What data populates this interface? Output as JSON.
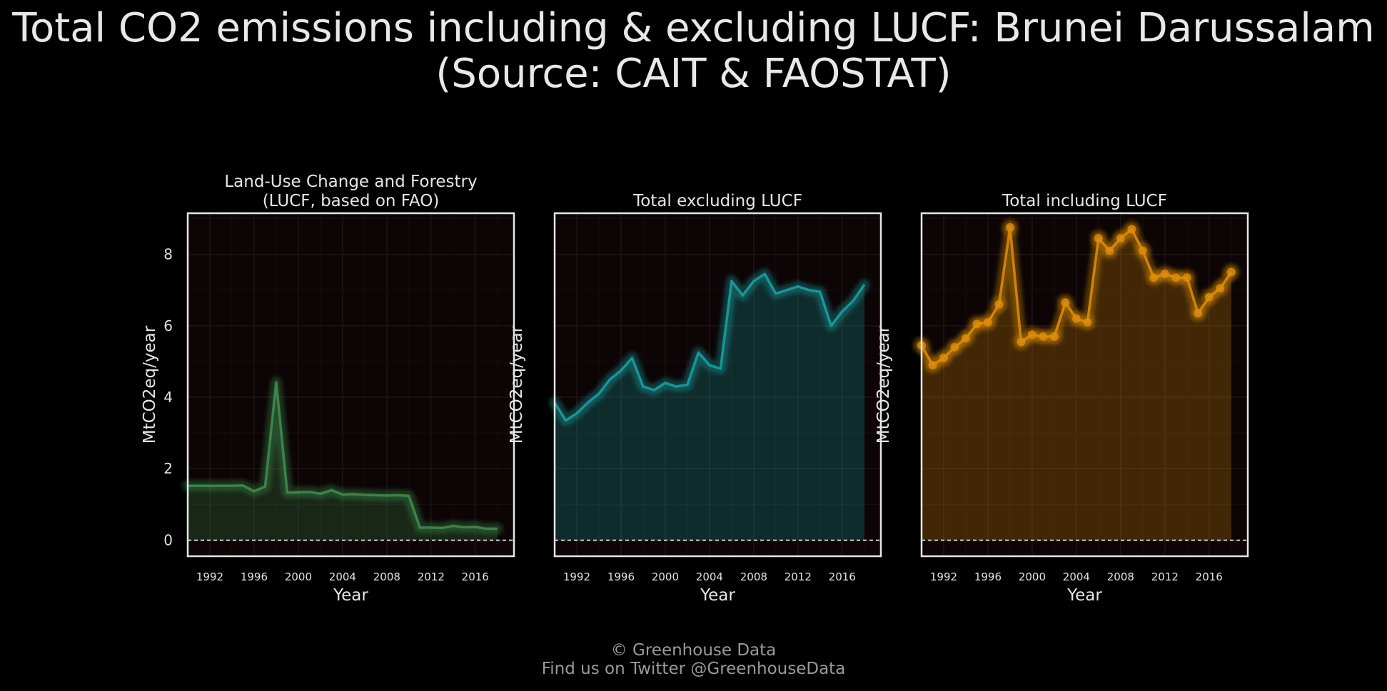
{
  "header": {
    "title_line1": "Total CO2 emissions including & excluding LUCF: Brunei Darussalam",
    "title_line2": "(Source: CAIT & FAOSTAT)"
  },
  "footer": {
    "line1": "© Greenhouse Data",
    "line2": "Find us on Twitter @GreenhouseData"
  },
  "chart_data": [
    {
      "type": "area",
      "title": "Land-Use Change and Forestry\n(LUCF, based on FAO)",
      "xlabel": "Year",
      "ylabel": "MtCO2eq/year",
      "xlim": [
        1990,
        2019.5
      ],
      "ylim": [
        -0.45,
        9.15
      ],
      "xticks": [
        1992,
        1996,
        2000,
        2004,
        2008,
        2012,
        2016
      ],
      "yticks": [
        0,
        2,
        4,
        6,
        8
      ],
      "show_yticks": true,
      "color": "#3f8f4f",
      "markers": false,
      "x": [
        1990,
        1991,
        1992,
        1993,
        1994,
        1995,
        1996,
        1997,
        1998,
        1999,
        2000,
        2001,
        2002,
        2003,
        2004,
        2005,
        2006,
        2007,
        2008,
        2009,
        2010,
        2011,
        2012,
        2013,
        2014,
        2015,
        2016,
        2017,
        2018
      ],
      "values": [
        1.52,
        1.52,
        1.52,
        1.52,
        1.52,
        1.53,
        1.37,
        1.5,
        4.42,
        1.33,
        1.34,
        1.35,
        1.3,
        1.4,
        1.28,
        1.29,
        1.27,
        1.26,
        1.25,
        1.26,
        1.24,
        0.35,
        0.35,
        0.34,
        0.4,
        0.36,
        0.37,
        0.32,
        0.32
      ]
    },
    {
      "type": "area",
      "title": "Total excluding LUCF",
      "xlabel": "Year",
      "ylabel": "MtCO2eq/year",
      "xlim": [
        1990,
        2019.5
      ],
      "ylim": [
        -0.45,
        9.15
      ],
      "xticks": [
        1992,
        1996,
        2000,
        2004,
        2008,
        2012,
        2016
      ],
      "yticks": [
        0,
        2,
        4,
        6,
        8
      ],
      "show_yticks": false,
      "color": "#18a4a6",
      "markers": false,
      "x": [
        1990,
        1991,
        1992,
        1993,
        1994,
        1995,
        1996,
        1997,
        1998,
        1999,
        2000,
        2001,
        2002,
        2003,
        2004,
        2005,
        2006,
        2007,
        2008,
        2009,
        2010,
        2011,
        2012,
        2013,
        2014,
        2015,
        2016,
        2017,
        2018
      ],
      "values": [
        3.85,
        3.35,
        3.55,
        3.85,
        4.1,
        4.5,
        4.75,
        5.1,
        4.3,
        4.2,
        4.4,
        4.3,
        4.35,
        5.25,
        4.9,
        4.8,
        7.25,
        6.85,
        7.25,
        7.45,
        6.9,
        7.0,
        7.1,
        7.0,
        6.95,
        6.0,
        6.4,
        6.7,
        7.15
      ]
    },
    {
      "type": "area",
      "title": "Total including LUCF",
      "xlabel": "Year",
      "ylabel": "MtCO2eq/year",
      "xlim": [
        1990,
        2019.5
      ],
      "ylim": [
        -0.45,
        9.15
      ],
      "xticks": [
        1992,
        1996,
        2000,
        2004,
        2008,
        2012,
        2016
      ],
      "yticks": [
        0,
        2,
        4,
        6,
        8
      ],
      "show_yticks": false,
      "color": "#e08e0b",
      "markers": true,
      "x": [
        1990,
        1991,
        1992,
        1993,
        1994,
        1995,
        1996,
        1997,
        1998,
        1999,
        2000,
        2001,
        2002,
        2003,
        2004,
        2005,
        2006,
        2007,
        2008,
        2009,
        2010,
        2011,
        2012,
        2013,
        2014,
        2015,
        2016,
        2017,
        2018
      ],
      "values": [
        5.45,
        4.9,
        5.1,
        5.4,
        5.65,
        6.05,
        6.1,
        6.6,
        8.75,
        5.55,
        5.75,
        5.7,
        5.7,
        6.65,
        6.2,
        6.1,
        8.45,
        8.1,
        8.45,
        8.7,
        8.1,
        7.35,
        7.45,
        7.35,
        7.35,
        6.35,
        6.8,
        7.05,
        7.5
      ]
    }
  ]
}
